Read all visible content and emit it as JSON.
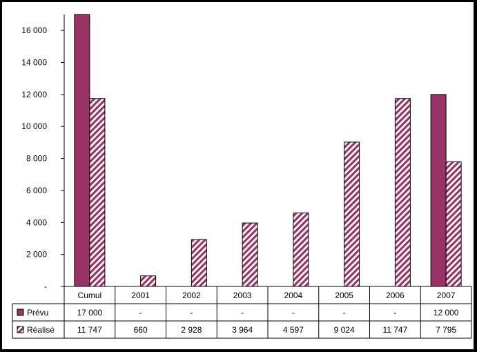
{
  "chart_data": {
    "type": "bar",
    "categories": [
      "Cumul",
      "2001",
      "2002",
      "2003",
      "2004",
      "2005",
      "2006",
      "2007"
    ],
    "series": [
      {
        "name": "Prévu",
        "values": [
          17000,
          null,
          null,
          null,
          null,
          null,
          null,
          12000
        ],
        "labels": [
          "17 000",
          "-",
          "-",
          "-",
          "-",
          "-",
          "-",
          "12 000"
        ],
        "color": "#993366",
        "pattern": "solid"
      },
      {
        "name": "Réalisé",
        "values": [
          11747,
          660,
          2928,
          3964,
          4597,
          9024,
          11747,
          7795
        ],
        "labels": [
          "11 747",
          "660",
          "2 928",
          "3 964",
          "4 597",
          "9 024",
          "11 747",
          "7 795"
        ],
        "color": "#993366",
        "pattern": "diagonal-hatch"
      }
    ],
    "ylim": [
      0,
      17000
    ],
    "yticks": [
      0,
      2000,
      4000,
      6000,
      8000,
      10000,
      12000,
      14000,
      16000
    ],
    "ytick_labels": [
      "-",
      "2 000",
      "4 000",
      "6 000",
      "8 000",
      "10 000",
      "12 000",
      "14 000",
      "16 000"
    ],
    "grid": false,
    "legend": "data-table"
  }
}
